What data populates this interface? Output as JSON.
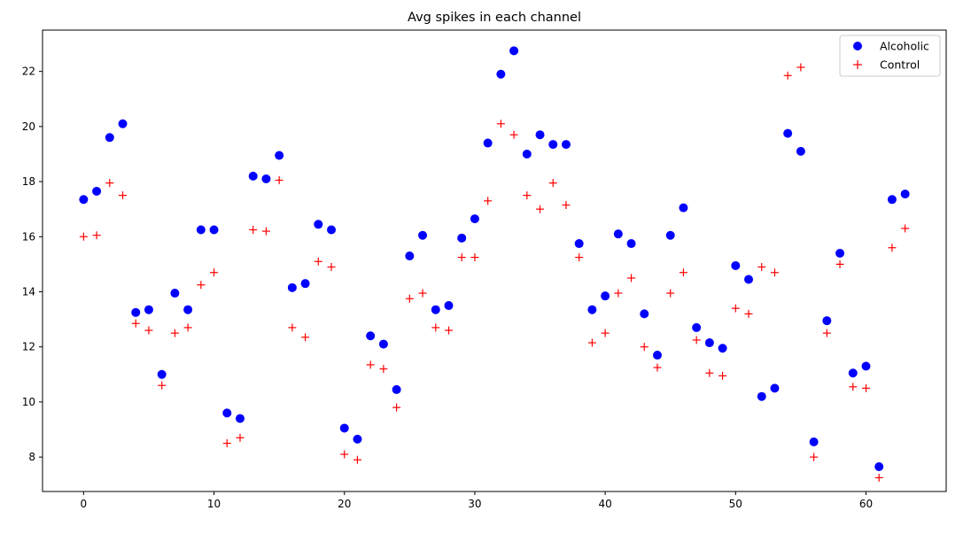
{
  "chart_data": {
    "type": "scatter",
    "title": "Avg spikes in each channel",
    "xlabel": "",
    "ylabel": "",
    "xlim": [
      -3.15,
      66.15
    ],
    "ylim": [
      6.75,
      23.5
    ],
    "xticks": [
      0,
      10,
      20,
      30,
      40,
      50,
      60
    ],
    "yticks": [
      8,
      10,
      12,
      14,
      16,
      18,
      20,
      22
    ],
    "grid": false,
    "legend_position": "top-right",
    "x": [
      0,
      1,
      2,
      3,
      4,
      5,
      6,
      7,
      8,
      9,
      10,
      11,
      12,
      13,
      14,
      15,
      16,
      17,
      18,
      19,
      20,
      21,
      22,
      23,
      24,
      25,
      26,
      27,
      28,
      29,
      30,
      31,
      32,
      33,
      34,
      35,
      36,
      37,
      38,
      39,
      40,
      41,
      42,
      43,
      44,
      45,
      46,
      47,
      48,
      49,
      50,
      51,
      52,
      53,
      54,
      55,
      56,
      57,
      58,
      59,
      60,
      61,
      62,
      63
    ],
    "series": [
      {
        "name": "Alcoholic",
        "marker": "circle",
        "color": "#0000ff",
        "values": [
          17.35,
          17.65,
          19.6,
          20.1,
          13.25,
          13.35,
          11.0,
          13.95,
          13.35,
          16.25,
          16.25,
          9.6,
          9.4,
          18.2,
          18.1,
          18.95,
          14.15,
          14.3,
          16.45,
          16.25,
          9.05,
          8.65,
          12.4,
          12.1,
          10.45,
          15.3,
          16.05,
          13.35,
          13.5,
          15.95,
          16.65,
          19.4,
          21.9,
          22.75,
          19.0,
          19.7,
          19.35,
          19.35,
          15.75,
          13.35,
          13.85,
          16.1,
          15.75,
          13.2,
          11.7,
          16.05,
          17.05,
          12.7,
          12.15,
          11.95,
          14.95,
          14.45,
          10.2,
          10.5,
          19.75,
          19.1,
          8.55,
          12.95,
          15.4,
          11.05,
          11.3,
          7.65,
          17.35,
          17.55
        ]
      },
      {
        "name": "Control",
        "marker": "plus",
        "color": "#ff0000",
        "values": [
          16.0,
          16.05,
          17.95,
          17.5,
          12.85,
          12.6,
          10.6,
          12.5,
          12.7,
          14.25,
          14.7,
          8.5,
          8.7,
          16.25,
          16.2,
          18.05,
          12.7,
          12.35,
          15.1,
          14.9,
          8.1,
          7.9,
          11.35,
          11.2,
          9.8,
          13.75,
          13.95,
          12.7,
          12.6,
          15.25,
          15.25,
          17.3,
          20.1,
          19.7,
          17.5,
          17.0,
          17.95,
          17.15,
          15.25,
          12.15,
          12.5,
          13.95,
          14.5,
          12.0,
          11.25,
          13.95,
          14.7,
          12.25,
          11.05,
          10.95,
          13.4,
          13.2,
          14.9,
          14.7,
          21.85,
          22.15,
          8.0,
          12.5,
          15.0,
          10.55,
          10.5,
          7.25,
          15.6,
          16.3
        ]
      }
    ]
  }
}
